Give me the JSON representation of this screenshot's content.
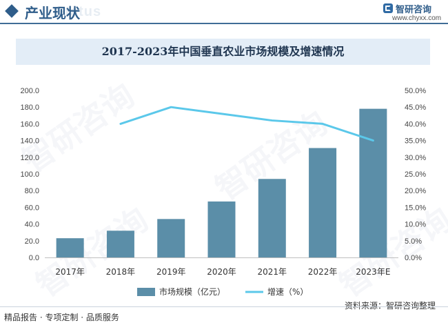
{
  "header": {
    "section_title": "产业现状",
    "ghost_text": "Status",
    "brand_name": "智研咨询",
    "brand_site": "www.chyxx.com"
  },
  "chart_title": "2017-2023年中国垂直农业市场规模及增速情况",
  "footer": {
    "left_text": "精品报告 · 专项定制 · 品质服务",
    "source_text": "资料来源：智研咨询整理"
  },
  "watermark": {
    "text": "智研咨询"
  },
  "colors": {
    "bar": "#5b8ea8",
    "line": "#5bc8ea",
    "accent": "#2f5d8a",
    "title_bg": "#e3edf7"
  },
  "chart_data": {
    "type": "bar",
    "title": "2017-2023年中国垂直农业市场规模及增速情况",
    "categories": [
      "2017年",
      "2018年",
      "2019年",
      "2020年",
      "2021年",
      "2022年",
      "2023年E"
    ],
    "series": [
      {
        "name": "市场规模（亿元）",
        "type": "bar",
        "axis": "left",
        "values": [
          23,
          32,
          46,
          67,
          94,
          131,
          178
        ]
      },
      {
        "name": "增速（%）",
        "type": "line",
        "axis": "right",
        "values": [
          null,
          40.0,
          45.0,
          43.0,
          41.0,
          40.0,
          35.0
        ]
      }
    ],
    "y_left": {
      "min": 0,
      "max": 200,
      "step": 20,
      "ticks": [
        "0.0",
        "20.0",
        "40.0",
        "60.0",
        "80.0",
        "100.0",
        "120.0",
        "140.0",
        "160.0",
        "180.0",
        "200.0"
      ]
    },
    "y_right": {
      "min": 0,
      "max": 50,
      "step": 5,
      "ticks": [
        "0.0%",
        "5.0%",
        "10.0%",
        "15.0%",
        "20.0%",
        "25.0%",
        "30.0%",
        "35.0%",
        "40.0%",
        "45.0%",
        "50.0%"
      ]
    },
    "grid": false,
    "legend_position": "bottom"
  }
}
